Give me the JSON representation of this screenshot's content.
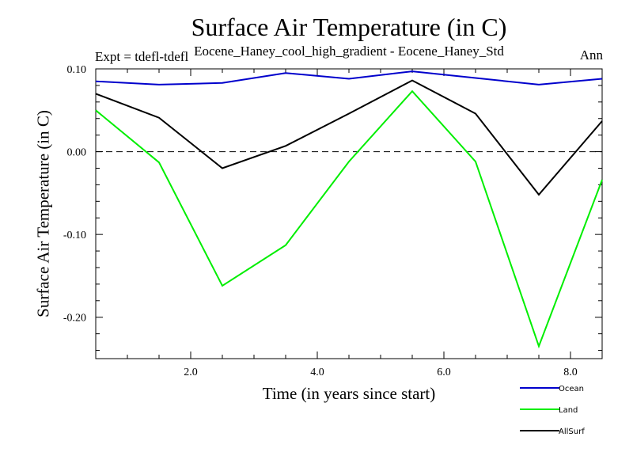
{
  "chart_data": {
    "type": "line",
    "title": "Surface Air Temperature (in C)",
    "subtitle": "Eocene_Haney_cool_high_gradient - Eocene_Haney_Std",
    "expt": "Expt = tdefl-tdefl",
    "period": "Ann",
    "xlabel": "Time (in years since start)",
    "ylabel": "Surface Air Temperature (in C)",
    "xlim": [
      0.5,
      8.5
    ],
    "ylim": [
      -0.25,
      0.1
    ],
    "xticks": [
      2.0,
      4.0,
      6.0,
      8.0
    ],
    "xtick_labels": [
      "2.0",
      "4.0",
      "6.0",
      "8.0"
    ],
    "yticks": [
      0.1,
      0.0,
      -0.1,
      -0.2
    ],
    "ytick_labels": [
      "0.10",
      "0.00",
      "-0.10",
      "-0.20"
    ],
    "zero_line": "dashed",
    "legend_position": "bottom-right",
    "x": [
      0.5,
      1.5,
      2.5,
      3.5,
      4.5,
      5.5,
      6.5,
      7.5,
      8.5
    ],
    "series": [
      {
        "name": "Ocean",
        "color": "#0000cc",
        "values": [
          0.085,
          0.081,
          0.083,
          0.095,
          0.088,
          0.097,
          0.089,
          0.081,
          0.088
        ]
      },
      {
        "name": "Land",
        "color": "#00ee00",
        "values": [
          0.05,
          -0.013,
          -0.162,
          -0.113,
          -0.012,
          0.073,
          -0.012,
          -0.235,
          -0.034
        ]
      },
      {
        "name": "AllSurf",
        "color": "#000000",
        "values": [
          0.07,
          0.041,
          -0.02,
          0.007,
          0.046,
          0.086,
          0.046,
          -0.052,
          0.037
        ]
      }
    ]
  }
}
